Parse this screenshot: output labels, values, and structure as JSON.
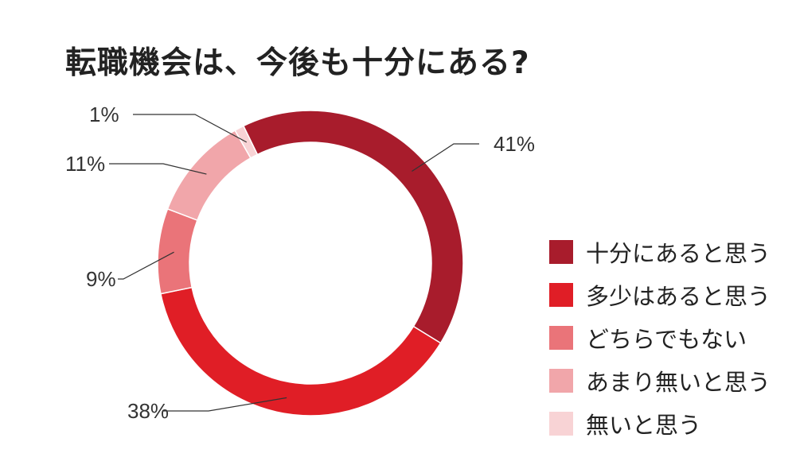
{
  "chart_data": {
    "type": "pie",
    "title": "転職機会は、今後も十分にある?",
    "categories": [
      "十分にあると思う",
      "多少はあると思う",
      "どちらでもない",
      "あまり無いと思う",
      "無いと思う"
    ],
    "values": [
      41,
      38,
      9,
      11,
      1
    ],
    "value_labels": [
      "41%",
      "38%",
      "9%",
      "11%",
      "1%"
    ],
    "colors": [
      "#a81c2c",
      "#e01e26",
      "#ea7479",
      "#f1a6aa",
      "#f8d3d5"
    ],
    "legend_position": "right",
    "donut": true
  }
}
